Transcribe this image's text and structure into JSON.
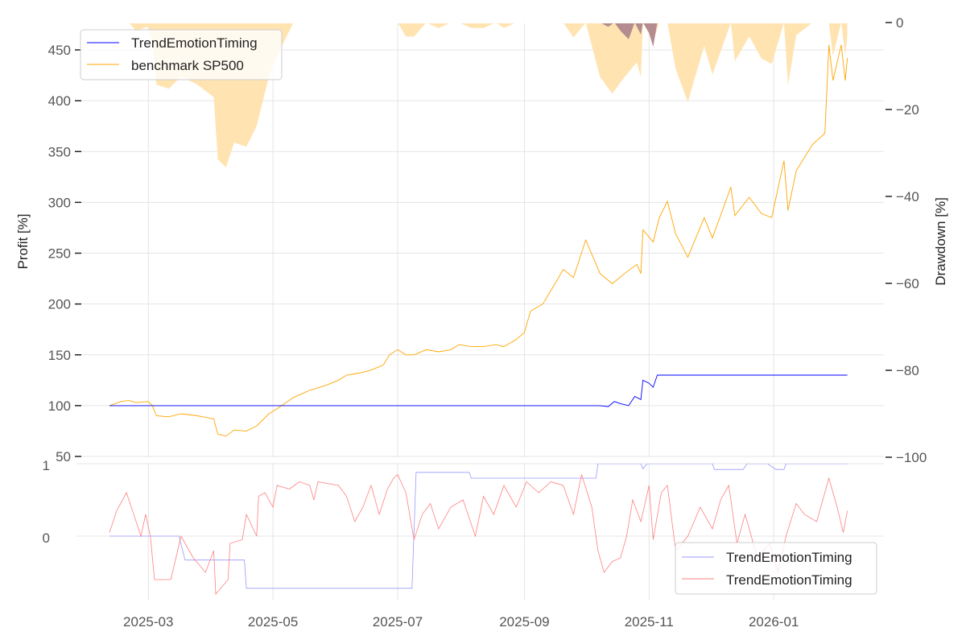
{
  "chart_data": [
    {
      "type": "line",
      "panel": "top",
      "start_date": "2025-02-10",
      "x_unit": "days since start_date",
      "ylabel": "Profit [%]",
      "y2label": "Drawdown [%]",
      "ylim": [
        48,
        476
      ],
      "y2lim": [
        -100,
        0
      ],
      "yticks": [
        "50",
        "100",
        "150",
        "200",
        "250",
        "300",
        "350",
        "400",
        "450"
      ],
      "y2ticks": [
        "0",
        "−20",
        "−40",
        "−60",
        "−80",
        "−100"
      ],
      "y2tick_values": [
        0,
        -20,
        -40,
        -60,
        -80,
        -100
      ],
      "grid": true,
      "legend_position": "top-left",
      "series": [
        {
          "name": "TrendEmotionTiming",
          "color": "#0000ff",
          "x": [
            0,
            240,
            244,
            247,
            250,
            254,
            257,
            260,
            261,
            264,
            266,
            268,
            361
          ],
          "y": [
            100,
            100,
            99,
            104,
            102,
            100,
            109,
            106,
            125,
            122,
            118,
            130,
            130
          ]
        },
        {
          "name": "benchmark SP500",
          "color": "#ffa500",
          "x": [
            0,
            5.5,
            9.5,
            13,
            19,
            21,
            23,
            29,
            35,
            43,
            51,
            53,
            57,
            61,
            67,
            72,
            78,
            82,
            90,
            98,
            106,
            112,
            116,
            122,
            128,
            134,
            137,
            141,
            145,
            149,
            155,
            161,
            167,
            171,
            177,
            183,
            189,
            193,
            199,
            203,
            206,
            212,
            218,
            222,
            227,
            233,
            240,
            246,
            252,
            258,
            260,
            261,
            266,
            269,
            273,
            277,
            283,
            291,
            295,
            304,
            306,
            313,
            319,
            324,
            330,
            332,
            336,
            344,
            350,
            352,
            354,
            358,
            360,
            361
          ],
          "y": [
            100,
            104,
            105,
            103,
            104,
            100,
            90,
            89,
            92,
            90,
            87,
            72,
            70,
            76,
            75,
            80,
            92,
            97,
            108,
            115,
            120,
            125,
            130,
            132,
            135,
            140,
            150,
            155,
            150,
            150,
            155,
            153,
            155,
            160,
            158,
            158,
            160,
            158,
            165,
            172,
            193,
            200,
            220,
            234,
            226,
            263,
            230,
            220,
            230,
            239,
            230,
            273,
            261,
            285,
            301,
            269,
            246,
            285,
            265,
            315,
            287,
            305,
            289,
            285,
            341,
            292,
            331,
            357,
            368,
            455,
            420,
            455,
            420,
            442
          ]
        }
      ],
      "drawdown": {
        "description_source": "computed from series as percent below running maximum",
        "benchmark_color": "#ffe3b0",
        "strategy_color": "#b48c8f"
      }
    },
    {
      "type": "line",
      "panel": "bottom",
      "start_date": "2025-02-10",
      "x_unit": "days since start_date",
      "ylim": [
        -0.88,
        1.1
      ],
      "yticks": [
        "1",
        "0"
      ],
      "ytick_values": [
        1,
        0
      ],
      "xticks": [
        "2025-03",
        "2025-05",
        "2025-07",
        "2025-09",
        "2025-11",
        "2026-01"
      ],
      "xtick_days": [
        19,
        80,
        141,
        203,
        264,
        325
      ],
      "grid": true,
      "legend_position": "bottom-right",
      "series": [
        {
          "name": "TrendEmotionTiming",
          "color": "#9999ff",
          "x": [
            0,
            34,
            37,
            66,
            67,
            148,
            150,
            176,
            177,
            238,
            239,
            260,
            261,
            263,
            295,
            296,
            310,
            312,
            322,
            326,
            330,
            331,
            361
          ],
          "y": [
            0,
            0,
            -0.33,
            -0.33,
            -0.72,
            -0.72,
            0.88,
            0.88,
            0.8,
            0.8,
            1.0,
            1.0,
            0.93,
            1.0,
            1.0,
            0.92,
            0.92,
            1.0,
            1.0,
            0.92,
            0.92,
            1.0,
            1.0
          ]
        },
        {
          "name": "TrendEmotionTiming",
          "color": "#ff8080",
          "x": [
            0,
            3.5,
            8.3,
            9.5,
            15.4,
            17.7,
            20,
            22,
            25,
            30,
            35,
            41,
            47,
            51,
            52,
            58,
            59,
            65,
            67,
            72,
            73,
            76,
            80,
            82,
            88,
            93,
            98,
            100,
            102,
            112,
            116,
            120,
            124,
            128,
            132,
            136,
            139,
            141,
            145,
            149,
            153,
            157,
            161,
            167,
            173,
            179,
            183,
            188,
            193,
            199,
            204,
            210,
            216,
            222,
            227,
            231,
            236,
            239,
            242,
            246,
            250,
            253,
            256,
            260,
            264,
            266,
            270,
            273,
            277,
            283,
            289,
            295,
            299,
            303,
            307,
            311,
            317,
            323,
            327,
            331,
            336,
            340,
            346,
            352,
            356,
            359,
            361
          ],
          "y": [
            0.05,
            0.35,
            0.6,
            0.5,
            0.0,
            0.3,
            0.0,
            -0.6,
            -0.6,
            -0.6,
            0.0,
            -0.3,
            -0.5,
            -0.2,
            -0.8,
            -0.6,
            -0.1,
            -0.05,
            0.3,
            0.0,
            0.55,
            0.6,
            0.4,
            0.7,
            0.65,
            0.75,
            0.7,
            0.5,
            0.75,
            0.7,
            0.55,
            0.2,
            0.4,
            0.7,
            0.3,
            0.65,
            0.8,
            0.85,
            0.6,
            -0.05,
            0.3,
            0.45,
            0.1,
            0.4,
            0.5,
            0.0,
            0.55,
            0.3,
            0.7,
            0.4,
            0.75,
            0.6,
            0.75,
            0.7,
            0.3,
            0.85,
            0.4,
            -0.2,
            -0.5,
            -0.35,
            -0.3,
            0.0,
            0.5,
            0.2,
            0.7,
            -0.05,
            0.6,
            0.7,
            -0.2,
            0.0,
            0.4,
            0.1,
            0.5,
            0.7,
            -0.1,
            0.3,
            -0.3,
            -0.1,
            -0.5,
            0.0,
            0.45,
            0.3,
            0.2,
            0.8,
            0.4,
            0.05,
            0.35
          ]
        }
      ]
    }
  ]
}
